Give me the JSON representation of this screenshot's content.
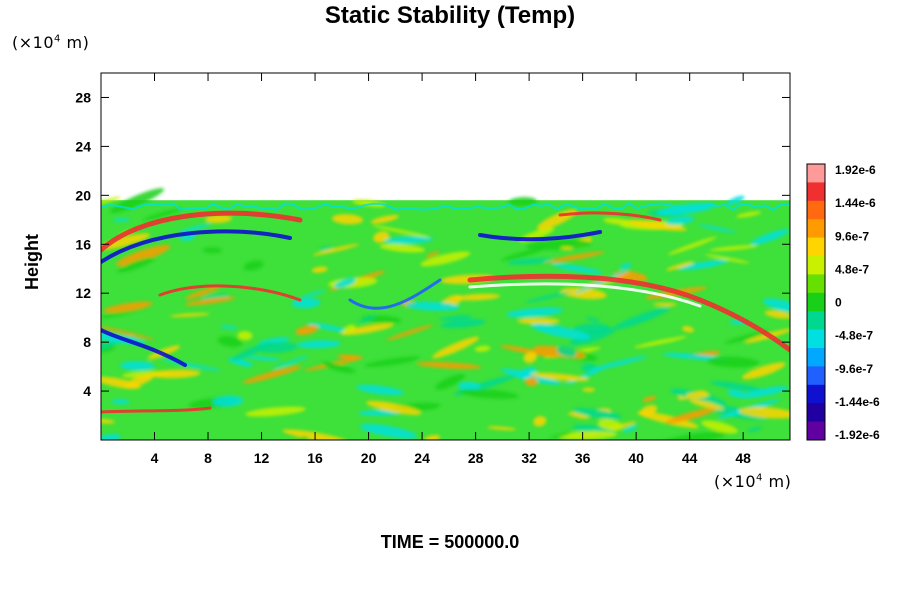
{
  "chart_data": {
    "type": "heatmap",
    "title": "Static Stability (Temp)",
    "ylabel": "Height",
    "xunit_prefix": "(×10",
    "xunit_exp": "4",
    "xunit_suffix": " m)",
    "yunit_prefix": "(×10",
    "yunit_exp": "4",
    "yunit_suffix": " m)",
    "xlim": [
      0,
      51.5
    ],
    "ylim": [
      0,
      30
    ],
    "x_ticks": [
      4,
      8,
      12,
      16,
      20,
      24,
      28,
      32,
      36,
      40,
      44,
      48
    ],
    "y_ticks": [
      4,
      8,
      12,
      16,
      20,
      24,
      28
    ],
    "data_top": 19.6,
    "colorbar_labels": [
      "1.92e-6",
      "1.44e-6",
      "9.6e-7",
      "4.8e-7",
      "0",
      "-4.8e-7",
      "-9.6e-7",
      "-1.44e-6",
      "-1.92e-6"
    ],
    "colorbar_colors": [
      "#ff9a9a",
      "#f03030",
      "#ff6a10",
      "#ff9a00",
      "#ffd400",
      "#c8f000",
      "#66e000",
      "#18d018",
      "#00d890",
      "#00e0e0",
      "#00a8ff",
      "#2060ff",
      "#1010d0",
      "#2000a0",
      "#6000a0"
    ],
    "footer": "TIME = 500000.0"
  }
}
